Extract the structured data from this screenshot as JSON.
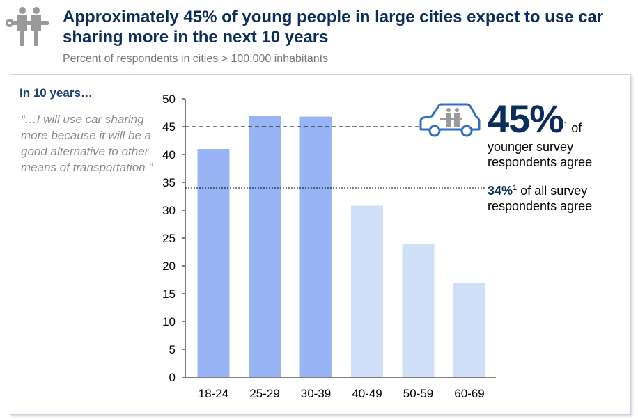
{
  "title": "Approximately 45% of young people in large cities expect to use car sharing more in the next 10 years",
  "subtitle": "Percent of respondents in cities > 100,000 inhabitants",
  "panel": {
    "heading": "In 10 years…",
    "quote": "“…I will use car sharing more because it will be a good alternative to other means of transportation ”"
  },
  "annotations": {
    "young_value": "45%",
    "young_footnote": "1",
    "young_of": "of",
    "young_text": "younger survey respondents agree",
    "all_value": "34%",
    "all_footnote": "1",
    "all_text": "of all survey respondents agree"
  },
  "icons": [
    "people-with-key-icon",
    "car-with-people-icon"
  ],
  "colors": {
    "title": "#0b2d5b",
    "bar_young": "#98b4f4",
    "bar_old": "#cfdff8",
    "icon": "#2f6fc4"
  },
  "chart_data": {
    "type": "bar",
    "categories": [
      "18-24",
      "25-29",
      "30-39",
      "40-49",
      "50-59",
      "60-69"
    ],
    "values": [
      41,
      47,
      46.8,
      30.8,
      24,
      17
    ],
    "ylim": [
      0,
      50
    ],
    "yticks": [
      0,
      5,
      10,
      15,
      20,
      25,
      30,
      35,
      40,
      45,
      50
    ],
    "reference_lines": [
      {
        "value": 45,
        "style": "dashed",
        "label": "45%"
      },
      {
        "value": 34,
        "style": "dotted",
        "label": "34%"
      }
    ],
    "grid": false,
    "xlabel": "",
    "ylabel": ""
  }
}
